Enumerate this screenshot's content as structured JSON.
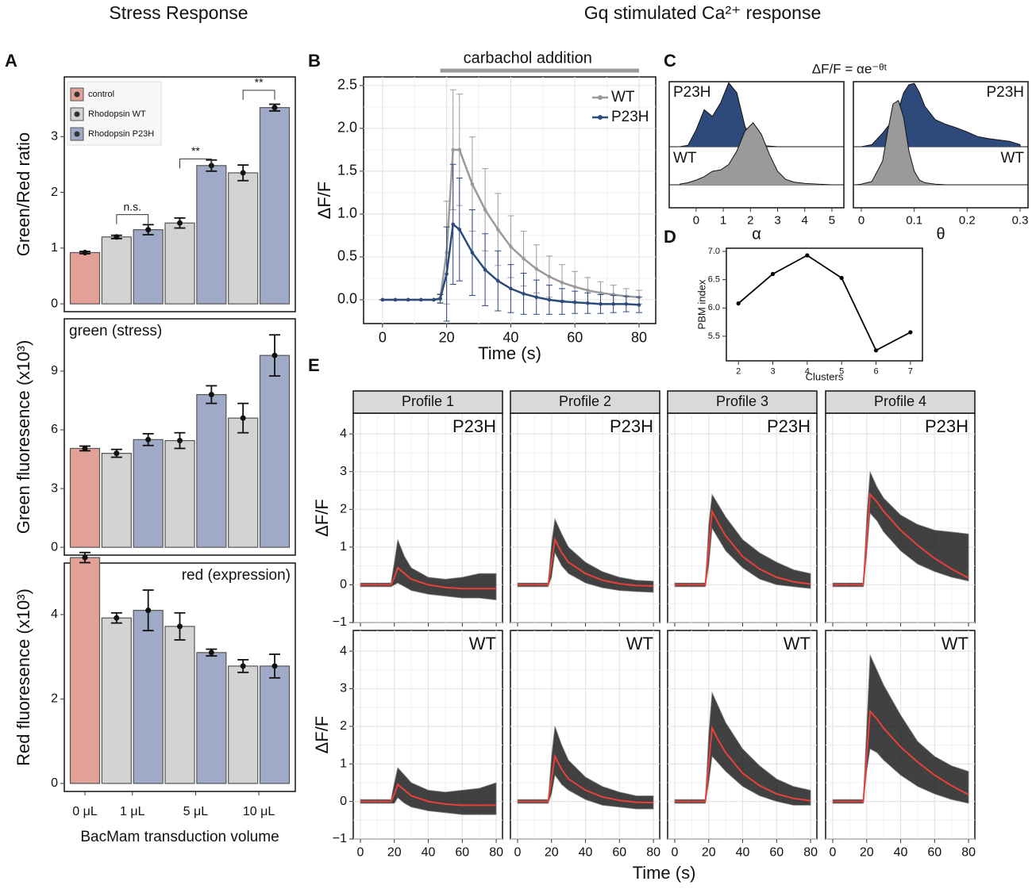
{
  "headers": {
    "left": "Stress Response",
    "right": "Gq stimulated Ca²⁺ response"
  },
  "panel_letters": [
    "A",
    "B",
    "C",
    "D",
    "E"
  ],
  "chart_data": [
    {
      "type": "bar",
      "ylabel": "Green/Red ratio",
      "ylim": [
        -0.14,
        4.07
      ],
      "yticks": [
        0,
        1,
        2,
        3
      ],
      "legend": "top-left",
      "annotations": [
        "n.s.",
        "**",
        "**"
      ],
      "series": [
        {
          "name": "control",
          "color": "#e2a096",
          "values": [
            0.92,
            null,
            null,
            null
          ],
          "errors": [
            0.02,
            null,
            null,
            null
          ]
        },
        {
          "name": "Rhodopsin WT",
          "color": "#d3d3d3",
          "values": [
            null,
            1.2,
            1.45,
            2.35
          ],
          "errors": [
            null,
            0.03,
            0.09,
            0.14
          ]
        },
        {
          "name": "Rhodopsin P23H",
          "color": "#9eaac6",
          "values": [
            null,
            1.33,
            2.48,
            3.52
          ],
          "errors": [
            null,
            0.09,
            0.1,
            0.06
          ]
        }
      ]
    },
    {
      "type": "bar",
      "ylabel": "Green fluoresence (x10³)",
      "label": "green (stress)",
      "label_corner": "top-left",
      "ylim": [
        -0.4,
        11.67
      ],
      "yticks": [
        0,
        3,
        6,
        9
      ],
      "series": [
        {
          "color": "#e2a096",
          "values": [
            5.05,
            null,
            null,
            null
          ],
          "errors": [
            0.12,
            null,
            null,
            null
          ]
        },
        {
          "color": "#d3d3d3",
          "values": [
            null,
            4.8,
            5.45,
            6.6
          ],
          "errors": [
            null,
            0.2,
            0.4,
            0.75
          ]
        },
        {
          "color": "#9eaac6",
          "values": [
            null,
            5.5,
            7.8,
            9.8
          ],
          "errors": [
            null,
            0.3,
            0.45,
            1.05
          ]
        }
      ]
    },
    {
      "type": "bar",
      "ylabel": "Red fluoresence (x10³)",
      "label": "red (expression)",
      "label_corner": "top-right",
      "ylim": [
        -0.19,
        5.22
      ],
      "yticks": [
        0,
        2,
        4
      ],
      "categories": [
        "0 μL",
        "1 μL",
        "5 μL",
        "10 μL"
      ],
      "xlabel": "BacMam transduction volume",
      "series": [
        {
          "color": "#e2a096",
          "values": [
            5.35,
            null,
            null,
            null
          ],
          "errors": [
            0.12,
            null,
            null,
            null
          ]
        },
        {
          "color": "#d3d3d3",
          "values": [
            null,
            3.92,
            3.72,
            2.78
          ],
          "errors": [
            null,
            0.12,
            0.32,
            0.15
          ]
        },
        {
          "color": "#9eaac6",
          "values": [
            null,
            4.1,
            3.1,
            2.78
          ],
          "errors": [
            null,
            0.48,
            0.08,
            0.28
          ]
        }
      ]
    },
    {
      "type": "line",
      "xlabel": "Time (s)",
      "ylabel": "ΔF/F",
      "grid": true,
      "legend": "top-right",
      "annotation": {
        "text": "carbachol addition",
        "from": 18,
        "to": 80
      },
      "xlim": [
        -5.9,
        85.2
      ],
      "xticks": [
        0,
        20,
        40,
        60,
        80
      ],
      "ylim": [
        -0.278,
        2.6
      ],
      "yticks": [
        {
          "value": 0,
          "label": "0.0"
        },
        0.5,
        {
          "value": 1,
          "label": "1.0"
        },
        1.5,
        {
          "value": 2,
          "label": "2.0"
        },
        2.5
      ],
      "x": [
        0,
        4,
        8,
        12,
        16,
        18,
        20,
        22,
        24,
        28,
        32,
        36,
        40,
        44,
        48,
        52,
        56,
        60,
        64,
        68,
        72,
        76,
        80
      ],
      "series": [
        {
          "name": "WT",
          "color": "#9a9a9a",
          "values": [
            0,
            0,
            0,
            0,
            0,
            0.02,
            0.55,
            1.75,
            1.75,
            1.35,
            1.05,
            0.82,
            0.62,
            0.48,
            0.36,
            0.27,
            0.2,
            0.15,
            0.11,
            0.08,
            0.06,
            0.04,
            0.03
          ],
          "errors": [
            0,
            0,
            0,
            0,
            0,
            0.05,
            0.6,
            0.7,
            0.65,
            0.55,
            0.48,
            0.42,
            0.36,
            0.32,
            0.28,
            0.24,
            0.21,
            0.18,
            0.15,
            0.13,
            0.11,
            0.09,
            0.08
          ]
        },
        {
          "name": "P23H",
          "color": "#2d4a7a",
          "values": [
            0,
            0,
            0,
            0,
            0,
            0.01,
            0.3,
            0.88,
            0.82,
            0.55,
            0.35,
            0.22,
            0.13,
            0.07,
            0.03,
            0,
            -0.02,
            -0.03,
            -0.04,
            -0.05,
            -0.05,
            -0.05,
            -0.06
          ],
          "errors": [
            0,
            0,
            0,
            0,
            0,
            0.05,
            0.55,
            0.7,
            0.6,
            0.5,
            0.42,
            0.35,
            0.28,
            0.24,
            0.2,
            0.17,
            0.15,
            0.13,
            0.12,
            0.11,
            0.1,
            0.09,
            0.09
          ]
        }
      ]
    },
    {
      "type": "density",
      "title": "ΔF/F = αe⁻ᶿᵗ",
      "panels": [
        {
          "xlabel": "α",
          "xlim": [
            -0.99,
            5.44
          ],
          "xticks": [
            0,
            1,
            2,
            3,
            4,
            5
          ],
          "x": [
            -0.6,
            -0.3,
            0,
            0.3,
            0.6,
            0.9,
            1.2,
            1.5,
            1.8,
            2.1,
            2.4,
            2.7,
            3,
            3.3,
            3.6,
            4,
            4.5,
            5
          ],
          "series": [
            {
              "name": "P23H",
              "color": "#2d4a7a",
              "values": [
                0,
                0.02,
                0.25,
                0.55,
                0.45,
                0.65,
                0.95,
                0.8,
                0.3,
                0.08,
                0.02,
                0.01,
                0,
                0,
                0,
                0,
                0,
                0
              ]
            },
            {
              "name": "WT",
              "color": "#9a9a9a",
              "values": [
                0.01,
                0.03,
                0.07,
                0.12,
                0.2,
                0.22,
                0.3,
                0.5,
                0.8,
                0.92,
                0.75,
                0.45,
                0.2,
                0.08,
                0.04,
                0.02,
                0.01,
                0
              ]
            }
          ]
        },
        {
          "xlabel": "θ",
          "xlim": [
            -0.015,
            0.315
          ],
          "xticks": [
            0,
            0.1,
            0.2,
            0.3
          ],
          "x": [
            -0.01,
            0,
            0.02,
            0.04,
            0.05,
            0.06,
            0.07,
            0.08,
            0.09,
            0.1,
            0.11,
            0.12,
            0.14,
            0.16,
            0.18,
            0.2,
            0.22,
            0.24,
            0.26,
            0.28,
            0.3
          ],
          "series": [
            {
              "name": "P23H",
              "color": "#2d4a7a",
              "values": [
                0,
                0,
                0.03,
                0.2,
                0.3,
                0.35,
                0.55,
                0.8,
                0.92,
                0.94,
                0.8,
                0.6,
                0.4,
                0.33,
                0.28,
                0.22,
                0.15,
                0.12,
                0.1,
                0.08,
                0.03
              ]
            },
            {
              "name": "WT",
              "color": "#9a9a9a",
              "values": [
                0,
                0.01,
                0.05,
                0.35,
                0.8,
                1.2,
                1.25,
                1.0,
                0.5,
                0.2,
                0.07,
                0.03,
                0.01,
                0,
                0,
                0,
                0,
                0,
                0,
                0,
                0
              ]
            }
          ]
        }
      ]
    },
    {
      "type": "line",
      "xlabel": "Clusters",
      "ylabel": "PBM index",
      "grid": false,
      "color": "#000000",
      "xlim": [
        1.65,
        7.35
      ],
      "xticks": [
        2,
        3,
        4,
        5,
        6,
        7
      ],
      "ylim": [
        5.065,
        7.056
      ],
      "yticks": [
        5.5,
        {
          "value": 6,
          "label": "6.0"
        },
        6.5,
        {
          "value": 7,
          "label": "7.0"
        }
      ],
      "x": [
        2,
        3,
        4,
        5,
        6,
        7
      ],
      "values": [
        6.08,
        6.6,
        6.93,
        6.53,
        5.25,
        5.57
      ]
    },
    {
      "type": "facet",
      "xlabel": "Time (s)",
      "ylabel": "ΔF/F",
      "grid": true,
      "mean_color": "#e8403a",
      "trace_color": "#111111",
      "xlim": [
        -4.2,
        83.7
      ],
      "xticks": [
        0,
        20,
        40,
        60,
        80
      ],
      "ylim": [
        -1,
        4.55
      ],
      "yticks": [
        {
          "value": -1,
          "label": "−1"
        },
        0,
        1,
        2,
        3,
        4
      ],
      "columns": [
        "Profile 1",
        "Profile 2",
        "Profile 3",
        "Profile 4"
      ],
      "rows": [
        "P23H",
        "WT"
      ],
      "x": [
        0,
        18,
        20,
        22,
        26,
        30,
        40,
        50,
        60,
        70,
        80
      ],
      "panels": [
        [
          {
            "mean": [
              0,
              0,
              0.2,
              0.45,
              0.3,
              0.15,
              0,
              -0.07,
              -0.1,
              -0.1,
              -0.1
            ],
            "upper": [
              0.05,
              0.05,
              0.6,
              1.2,
              0.75,
              0.45,
              0.2,
              0.15,
              0.2,
              0.3,
              0.3
            ],
            "lower": [
              -0.05,
              -0.05,
              0,
              0.05,
              -0.05,
              -0.15,
              -0.25,
              -0.3,
              -0.35,
              -0.35,
              -0.4
            ]
          },
          {
            "mean": [
              0,
              0,
              0.6,
              1.2,
              0.85,
              0.6,
              0.3,
              0.12,
              0.03,
              -0.02,
              -0.03
            ],
            "upper": [
              0.05,
              0.05,
              1.1,
              1.75,
              1.35,
              1.0,
              0.6,
              0.35,
              0.2,
              0.12,
              0.1
            ],
            "lower": [
              -0.05,
              -0.05,
              0.2,
              0.85,
              0.5,
              0.3,
              0.05,
              -0.08,
              -0.15,
              -0.18,
              -0.2
            ]
          },
          {
            "mean": [
              0,
              0,
              1,
              1.95,
              1.6,
              1.3,
              0.75,
              0.42,
              0.2,
              0.08,
              0.02
            ],
            "upper": [
              0.05,
              0.05,
              1.6,
              2.4,
              2.1,
              1.8,
              1.2,
              0.85,
              0.6,
              0.4,
              0.3
            ],
            "lower": [
              -0.05,
              -0.05,
              0.5,
              1.5,
              1.2,
              0.9,
              0.45,
              0.15,
              0,
              -0.05,
              -0.1
            ]
          },
          {
            "mean": [
              0,
              0,
              1.2,
              2.4,
              2.2,
              1.95,
              1.45,
              1.05,
              0.7,
              0.42,
              0.18
            ],
            "upper": [
              0.05,
              0.05,
              1.8,
              3.0,
              2.6,
              2.3,
              1.85,
              1.6,
              1.45,
              1.4,
              1.35
            ],
            "lower": [
              -0.05,
              -0.05,
              0.8,
              1.9,
              1.7,
              1.4,
              0.9,
              0.55,
              0.35,
              0.2,
              0.1
            ]
          }
        ],
        [
          {
            "mean": [
              0,
              0,
              0.2,
              0.45,
              0.3,
              0.15,
              0,
              -0.07,
              -0.1,
              -0.1,
              -0.1
            ],
            "upper": [
              0.05,
              0.05,
              0.5,
              0.9,
              0.7,
              0.5,
              0.3,
              0.25,
              0.3,
              0.35,
              0.5
            ],
            "lower": [
              -0.05,
              -0.05,
              -0.05,
              0.1,
              -0.05,
              -0.15,
              -0.25,
              -0.3,
              -0.35,
              -0.35,
              -0.35
            ]
          },
          {
            "mean": [
              0,
              0,
              0.6,
              1.2,
              0.85,
              0.6,
              0.3,
              0.12,
              0.03,
              -0.02,
              -0.03
            ],
            "upper": [
              0.05,
              0.05,
              1.2,
              2.0,
              1.5,
              1.1,
              0.65,
              0.4,
              0.25,
              0.15,
              0.15
            ],
            "lower": [
              -0.05,
              -0.05,
              0.2,
              0.7,
              0.45,
              0.3,
              0.05,
              -0.1,
              -0.15,
              -0.2,
              -0.2
            ]
          },
          {
            "mean": [
              0,
              0,
              1,
              1.95,
              1.6,
              1.3,
              0.75,
              0.42,
              0.2,
              0.08,
              0.02
            ],
            "upper": [
              0.05,
              0.05,
              1.8,
              2.9,
              2.5,
              2.1,
              1.4,
              0.95,
              0.6,
              0.4,
              0.3
            ],
            "lower": [
              -0.05,
              -0.05,
              0.5,
              1.2,
              1.0,
              0.8,
              0.4,
              0.15,
              0,
              -0.1,
              -0.1
            ]
          },
          {
            "mean": [
              0,
              0,
              1.2,
              2.4,
              2.2,
              1.95,
              1.45,
              1.05,
              0.7,
              0.42,
              0.18
            ],
            "upper": [
              0.05,
              0.05,
              2.0,
              3.9,
              3.5,
              3.1,
              2.3,
              1.6,
              1.2,
              0.95,
              0.8
            ],
            "lower": [
              -0.05,
              -0.05,
              0.8,
              1.4,
              1.3,
              1.1,
              0.7,
              0.4,
              0.2,
              0.05,
              -0.05
            ]
          }
        ]
      ]
    }
  ]
}
